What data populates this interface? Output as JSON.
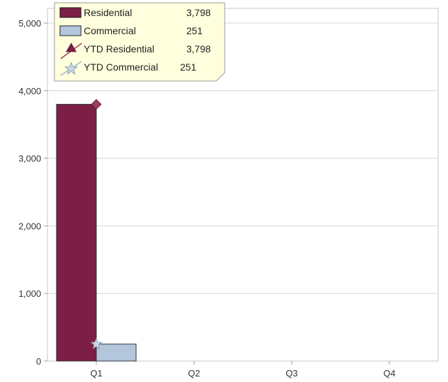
{
  "chart_data": {
    "type": "bar",
    "categories": [
      "Q1",
      "Q2",
      "Q3",
      "Q4"
    ],
    "ylim": [
      0,
      5000
    ],
    "yticks": [
      0,
      1000,
      2000,
      3000,
      4000,
      5000
    ],
    "ytick_labels": [
      "0",
      "1,000",
      "2,000",
      "3,000",
      "4,000",
      "5,000"
    ],
    "grid": true,
    "legend_position": "top-left",
    "series": [
      {
        "name": "Residential",
        "kind": "bar",
        "values": [
          3798,
          null,
          null,
          null
        ],
        "color": "#7b1f45",
        "display_value": "3,798"
      },
      {
        "name": "Commercial",
        "kind": "bar",
        "values": [
          251,
          null,
          null,
          null
        ],
        "color": "#b3c6dc",
        "display_value": "251"
      },
      {
        "name": "YTD Residential",
        "kind": "line",
        "marker": "diamond",
        "values": [
          3798,
          null,
          null,
          null
        ],
        "color": "#9c3f62",
        "display_value": "3,798"
      },
      {
        "name": "YTD Commercial",
        "kind": "line",
        "marker": "star",
        "values": [
          251,
          null,
          null,
          null
        ],
        "color": "#9fb3cc",
        "display_value": "251"
      }
    ]
  }
}
